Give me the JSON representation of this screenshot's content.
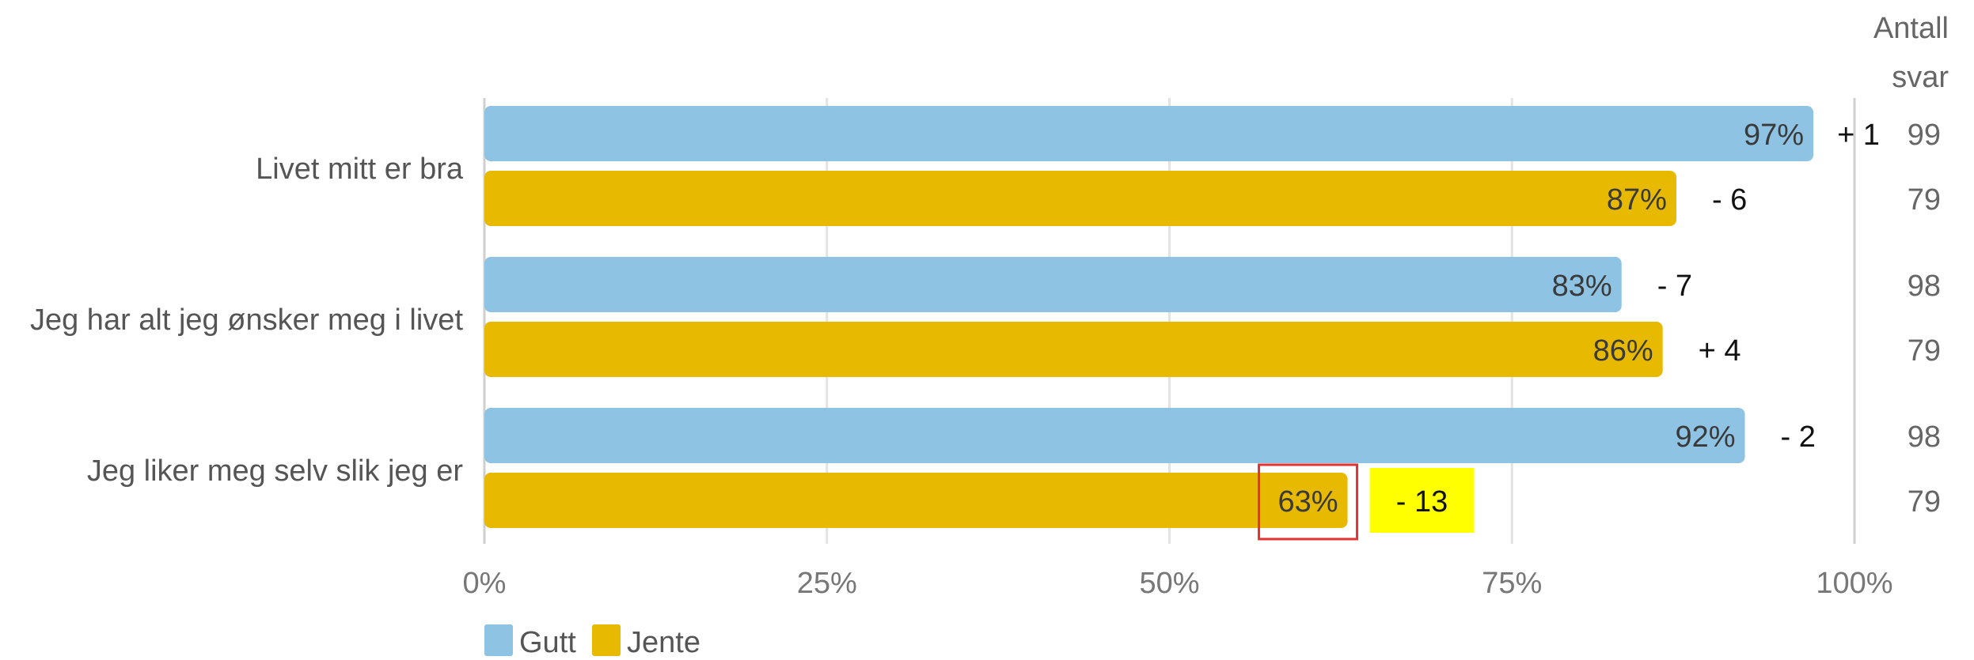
{
  "chart_data": {
    "type": "bar",
    "orientation": "horizontal",
    "categories": [
      "Livet mitt er bra",
      "Jeg har alt jeg ønsker meg i livet",
      "Jeg liker meg selv slik jeg er"
    ],
    "series": [
      {
        "name": "Gutt",
        "color": "#8fc3e3",
        "values": [
          97,
          83,
          92
        ],
        "labels": [
          "97%",
          "83%",
          "92%"
        ],
        "deltas": [
          "+ 1",
          "- 7",
          "- 2"
        ],
        "counts": [
          "99",
          "98",
          "98"
        ]
      },
      {
        "name": "Jente",
        "color": "#e7b900",
        "values": [
          87,
          86,
          63
        ],
        "labels": [
          "87%",
          "86%",
          "63%"
        ],
        "deltas": [
          "- 6",
          "+ 4",
          "- 13"
        ],
        "counts": [
          "79",
          "79",
          "79"
        ]
      }
    ],
    "xlim": [
      0,
      100
    ],
    "x_ticks": [
      0,
      25,
      50,
      75,
      100
    ],
    "x_tick_labels": [
      "0%",
      "25%",
      "50%",
      "75%",
      "100%"
    ],
    "grid": true,
    "legend_position": "bottom-left",
    "count_header": [
      "Antall",
      "svar"
    ],
    "highlight": {
      "series": 1,
      "category": 2,
      "value_box_color": "#e33232",
      "delta_fill": "#ffff00"
    }
  }
}
